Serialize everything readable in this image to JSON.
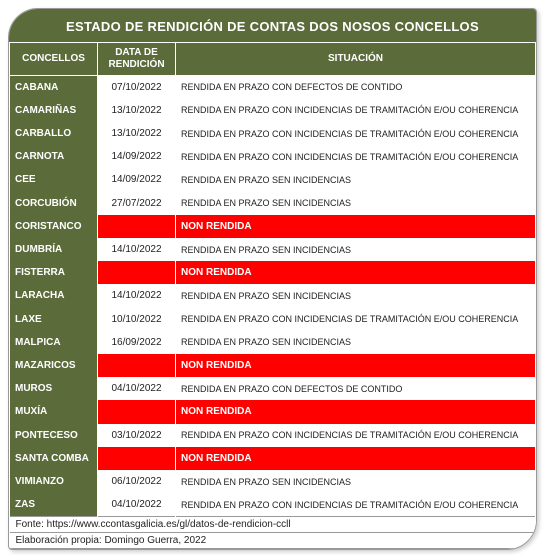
{
  "title": "ESTADO DE RENDICIÓN DE CONTAS DOS NOSOS CONCELLOS",
  "columns": {
    "concellos": "CONCELLOS",
    "data": "DATA DE RENDICIÓN",
    "situacion": "SITUACIÓN"
  },
  "rows": [
    {
      "name": "CABANA",
      "date": "07/10/2022",
      "situation": "RENDIDA EN PRAZO CON DEFECTOS DE CONTIDO",
      "non": false
    },
    {
      "name": "CAMARIÑAS",
      "date": "13/10/2022",
      "situation": "RENDIDA EN PRAZO CON INCIDENCIAS DE TRAMITACIÓN E/OU COHERENCIA",
      "non": false
    },
    {
      "name": "CARBALLO",
      "date": "13/10/2022",
      "situation": "RENDIDA EN PRAZO CON INCIDENCIAS DE TRAMITACIÓN E/OU COHERENCIA",
      "non": false
    },
    {
      "name": "CARNOTA",
      "date": "14/09/2022",
      "situation": "RENDIDA EN PRAZO CON INCIDENCIAS DE TRAMITACIÓN E/OU COHERENCIA",
      "non": false
    },
    {
      "name": "CEE",
      "date": "14/09/2022",
      "situation": "RENDIDA EN PRAZO SEN INCIDENCIAS",
      "non": false
    },
    {
      "name": "CORCUBIÓN",
      "date": "27/07/2022",
      "situation": "RENDIDA EN PRAZO SEN INCIDENCIAS",
      "non": false
    },
    {
      "name": "CORISTANCO",
      "date": "",
      "situation": "NON RENDIDA",
      "non": true
    },
    {
      "name": "DUMBRÍA",
      "date": "14/10/2022",
      "situation": "RENDIDA EN PRAZO SEN INCIDENCIAS",
      "non": false
    },
    {
      "name": "FISTERRA",
      "date": "",
      "situation": "NON RENDIDA",
      "non": true
    },
    {
      "name": "LARACHA",
      "date": "14/10/2022",
      "situation": "RENDIDA EN PRAZO SEN INCIDENCIAS",
      "non": false
    },
    {
      "name": "LAXE",
      "date": "10/10/2022",
      "situation": "RENDIDA EN PRAZO CON INCIDENCIAS DE TRAMITACIÓN E/OU COHERENCIA",
      "non": false
    },
    {
      "name": "MALPICA",
      "date": "16/09/2022",
      "situation": "RENDIDA EN PRAZO SEN INCIDENCIAS",
      "non": false
    },
    {
      "name": "MAZARICOS",
      "date": "",
      "situation": "NON RENDIDA",
      "non": true
    },
    {
      "name": "MUROS",
      "date": "04/10/2022",
      "situation": "RENDIDA EN PRAZO CON DEFECTOS DE CONTIDO",
      "non": false
    },
    {
      "name": "MUXÍA",
      "date": "",
      "situation": "NON RENDIDA",
      "non": true
    },
    {
      "name": "PONTECESO",
      "date": "03/10/2022",
      "situation": "RENDIDA EN PRAZO CON INCIDENCIAS DE TRAMITACIÓN E/OU COHERENCIA",
      "non": false
    },
    {
      "name": "SANTA COMBA",
      "date": "",
      "situation": "NON RENDIDA",
      "non": true
    },
    {
      "name": "VIMIANZO",
      "date": "06/10/2022",
      "situation": "RENDIDA EN PRAZO SEN INCIDENCIAS",
      "non": false
    },
    {
      "name": "ZAS",
      "date": "04/10/2022",
      "situation": "RENDIDA EN PRAZO CON INCIDENCIAS DE TRAMITACIÓN E/OU COHERENCIA",
      "non": false
    }
  ],
  "footer": {
    "fonte": "Fonte: https://www.ccontasgalicia.es/gl/datos-de-rendicion-ccll",
    "elab": "Elaboración propia: Domingo Guerra, 2022"
  },
  "colors": {
    "header_bg": "#5b6b3a",
    "non_rendida_bg": "#ff0000",
    "row_bg": "#ffffff"
  }
}
